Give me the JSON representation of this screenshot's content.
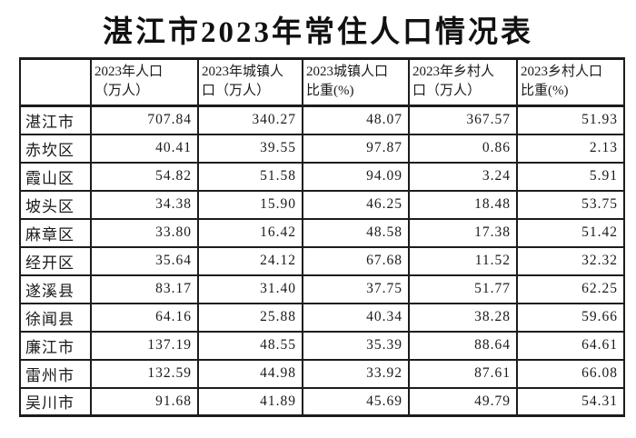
{
  "title": "湛江市2023年常住人口情况表",
  "colors": {
    "background": "#ffffff",
    "text": "#1a1a1a",
    "border": "#1c1c1c"
  },
  "table": {
    "columns": [
      {
        "label": ""
      },
      {
        "label": "2023年人口\n（万人）"
      },
      {
        "label": "2023年城镇人\n口（万人）"
      },
      {
        "label": "2023城镇人口\n比重(%)"
      },
      {
        "label": "2023年乡村人\n口（万人）"
      },
      {
        "label": "2023乡村人口\n比重(%)"
      }
    ],
    "rows": [
      {
        "label": "湛江市",
        "values": [
          "707.84",
          "340.27",
          "48.07",
          "367.57",
          "51.93"
        ]
      },
      {
        "label": "赤坎区",
        "values": [
          "40.41",
          "39.55",
          "97.87",
          "0.86",
          "2.13"
        ]
      },
      {
        "label": "霞山区",
        "values": [
          "54.82",
          "51.58",
          "94.09",
          "3.24",
          "5.91"
        ]
      },
      {
        "label": "坡头区",
        "values": [
          "34.38",
          "15.90",
          "46.25",
          "18.48",
          "53.75"
        ]
      },
      {
        "label": "麻章区",
        "values": [
          "33.80",
          "16.42",
          "48.58",
          "17.38",
          "51.42"
        ]
      },
      {
        "label": "经开区",
        "values": [
          "35.64",
          "24.12",
          "67.68",
          "11.52",
          "32.32"
        ]
      },
      {
        "label": "遂溪县",
        "values": [
          "83.17",
          "31.40",
          "37.75",
          "51.77",
          "62.25"
        ]
      },
      {
        "label": "徐闻县",
        "values": [
          "64.16",
          "25.88",
          "40.34",
          "38.28",
          "59.66"
        ]
      },
      {
        "label": "廉江市",
        "values": [
          "137.19",
          "48.55",
          "35.39",
          "88.64",
          "64.61"
        ]
      },
      {
        "label": "雷州市",
        "values": [
          "132.59",
          "44.98",
          "33.92",
          "87.61",
          "66.08"
        ]
      },
      {
        "label": "吴川市",
        "values": [
          "91.68",
          "41.89",
          "45.69",
          "49.79",
          "54.31"
        ]
      }
    ]
  }
}
